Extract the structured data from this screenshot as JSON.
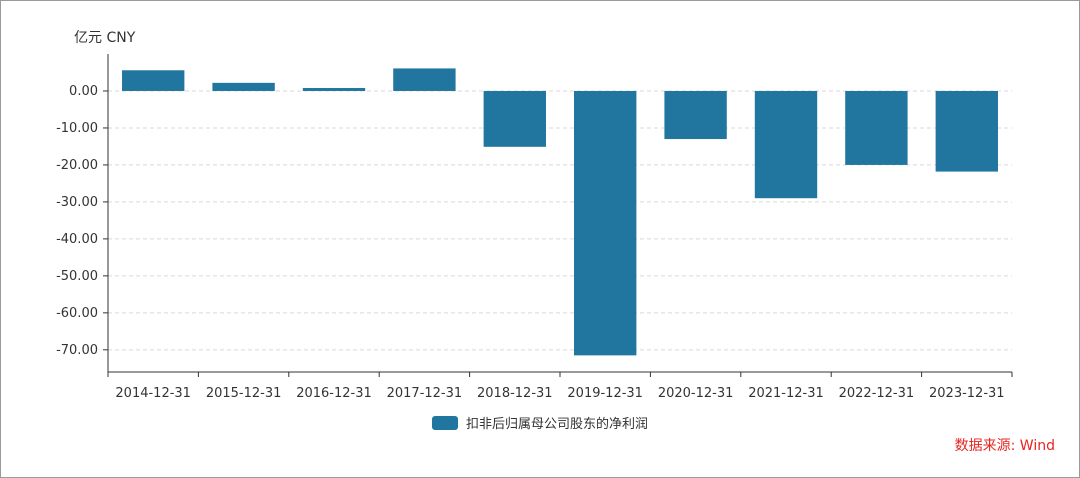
{
  "chart_data": {
    "type": "bar",
    "unit_label": "亿元  CNY",
    "categories": [
      "2014-12-31",
      "2015-12-31",
      "2016-12-31",
      "2017-12-31",
      "2018-12-31",
      "2019-12-31",
      "2020-12-31",
      "2021-12-31",
      "2022-12-31",
      "2023-12-31"
    ],
    "series": [
      {
        "name": "扣非后归属母公司股东的净利润",
        "color": "#21769f",
        "values": [
          5.6,
          2.2,
          0.8,
          6.1,
          -15.1,
          -71.5,
          -13.0,
          -29.0,
          -20.0,
          -21.8
        ]
      }
    ],
    "ylim": [
      -76,
      10
    ],
    "yticks": [
      0,
      -10,
      -20,
      -30,
      -40,
      -50,
      -60,
      -70
    ],
    "ytick_labels": [
      "0.00",
      "-10.00",
      "-20.00",
      "-30.00",
      "-40.00",
      "-50.00",
      "-60.00",
      "-70.00"
    ],
    "grid": "horizontal-dashed",
    "legend_position": "bottom-center",
    "source": "数据来源: Wind"
  }
}
